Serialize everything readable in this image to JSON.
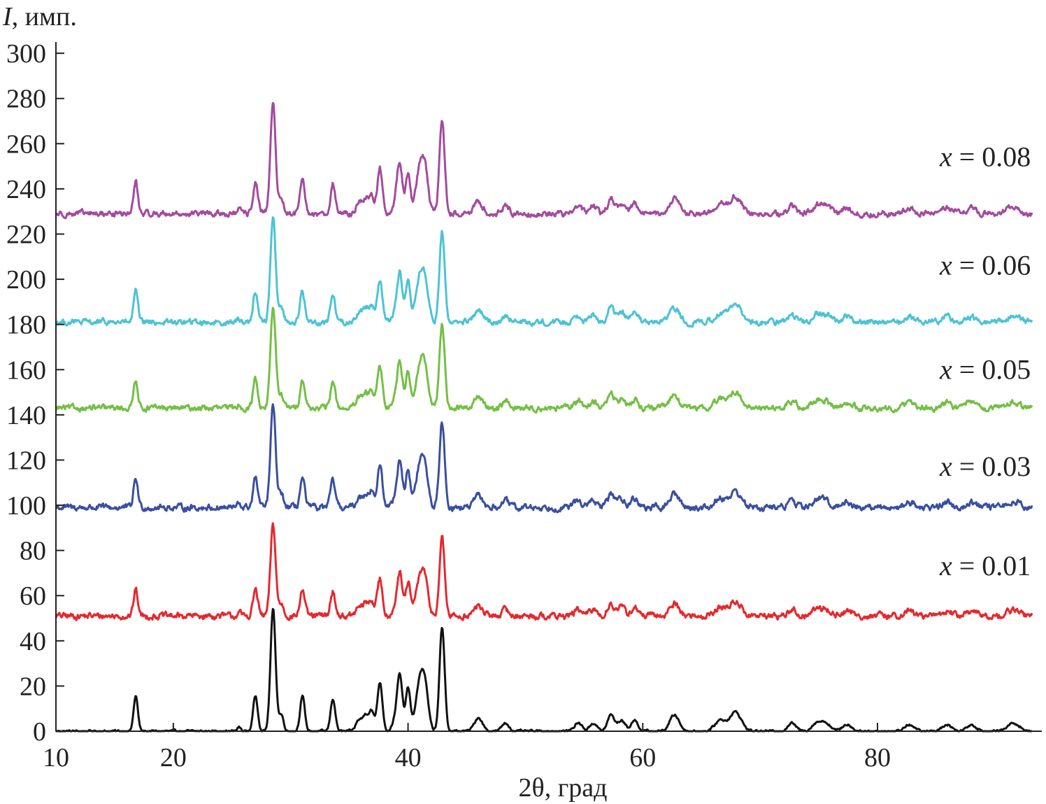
{
  "chart_data": {
    "type": "line",
    "xlabel": "2θ, град",
    "ylabel_symbol": "I",
    "ylabel_unit": ", имп.",
    "xlim": [
      10,
      94
    ],
    "ylim": [
      0,
      305
    ],
    "xticks": [
      10,
      20,
      40,
      60,
      80
    ],
    "yticks": [
      0,
      20,
      40,
      60,
      80,
      100,
      120,
      140,
      160,
      180,
      200,
      220,
      240,
      260,
      280,
      300
    ],
    "grid": false,
    "peaks": [
      {
        "x": 16.8,
        "w": 0.18,
        "h": 13
      },
      {
        "x": 25.6,
        "w": 0.15,
        "h": 1.5
      },
      {
        "x": 27.0,
        "w": 0.2,
        "h": 13
      },
      {
        "x": 28.5,
        "w": 0.22,
        "h": 45
      },
      {
        "x": 29.2,
        "w": 0.2,
        "h": 6
      },
      {
        "x": 31.0,
        "w": 0.2,
        "h": 13
      },
      {
        "x": 33.6,
        "w": 0.2,
        "h": 12
      },
      {
        "x": 35.8,
        "w": 0.25,
        "h": 4
      },
      {
        "x": 36.4,
        "w": 0.25,
        "h": 6
      },
      {
        "x": 36.9,
        "w": 0.2,
        "h": 7
      },
      {
        "x": 37.6,
        "w": 0.22,
        "h": 18
      },
      {
        "x": 38.9,
        "w": 0.25,
        "h": 4
      },
      {
        "x": 39.3,
        "w": 0.22,
        "h": 20
      },
      {
        "x": 40.0,
        "w": 0.2,
        "h": 16
      },
      {
        "x": 40.9,
        "w": 0.3,
        "h": 14
      },
      {
        "x": 41.4,
        "w": 0.3,
        "h": 18
      },
      {
        "x": 42.9,
        "w": 0.22,
        "h": 38
      },
      {
        "x": 46.0,
        "w": 0.35,
        "h": 5
      },
      {
        "x": 48.3,
        "w": 0.3,
        "h": 3
      },
      {
        "x": 54.5,
        "w": 0.35,
        "h": 3
      },
      {
        "x": 55.8,
        "w": 0.3,
        "h": 3
      },
      {
        "x": 57.3,
        "w": 0.3,
        "h": 6
      },
      {
        "x": 58.2,
        "w": 0.3,
        "h": 4
      },
      {
        "x": 59.3,
        "w": 0.3,
        "h": 4
      },
      {
        "x": 62.7,
        "w": 0.4,
        "h": 6
      },
      {
        "x": 66.6,
        "w": 0.45,
        "h": 4
      },
      {
        "x": 67.9,
        "w": 0.5,
        "h": 7
      },
      {
        "x": 72.7,
        "w": 0.35,
        "h": 3
      },
      {
        "x": 74.8,
        "w": 0.4,
        "h": 3
      },
      {
        "x": 75.6,
        "w": 0.4,
        "h": 3
      },
      {
        "x": 77.4,
        "w": 0.4,
        "h": 2.5
      },
      {
        "x": 82.7,
        "w": 0.4,
        "h": 2.5
      },
      {
        "x": 85.9,
        "w": 0.4,
        "h": 2.5
      },
      {
        "x": 88.0,
        "w": 0.4,
        "h": 2.5
      },
      {
        "x": 91.6,
        "w": 0.5,
        "h": 3
      }
    ],
    "series": [
      {
        "label": "",
        "offset": 0,
        "scale": 1.2,
        "noise": 0.4,
        "color": "#111111"
      },
      {
        "label": "x = 0.01",
        "offset": 51,
        "scale": 0.9,
        "noise": 1.1,
        "color": "#e4292f"
      },
      {
        "label": "x = 0.03",
        "offset": 99,
        "scale": 1.0,
        "noise": 1.1,
        "color": "#3a4f9f"
      },
      {
        "label": "x = 0.05",
        "offset": 143,
        "scale": 1.0,
        "noise": 1.0,
        "color": "#74bf45"
      },
      {
        "label": "x = 0.06",
        "offset": 181,
        "scale": 1.05,
        "noise": 1.0,
        "color": "#4cc3d4"
      },
      {
        "label": "x = 0.08",
        "offset": 229,
        "scale": 1.1,
        "noise": 1.0,
        "color": "#a24b9e"
      }
    ],
    "label_positions_y": [
      null,
      73,
      117,
      160,
      206,
      254
    ]
  }
}
